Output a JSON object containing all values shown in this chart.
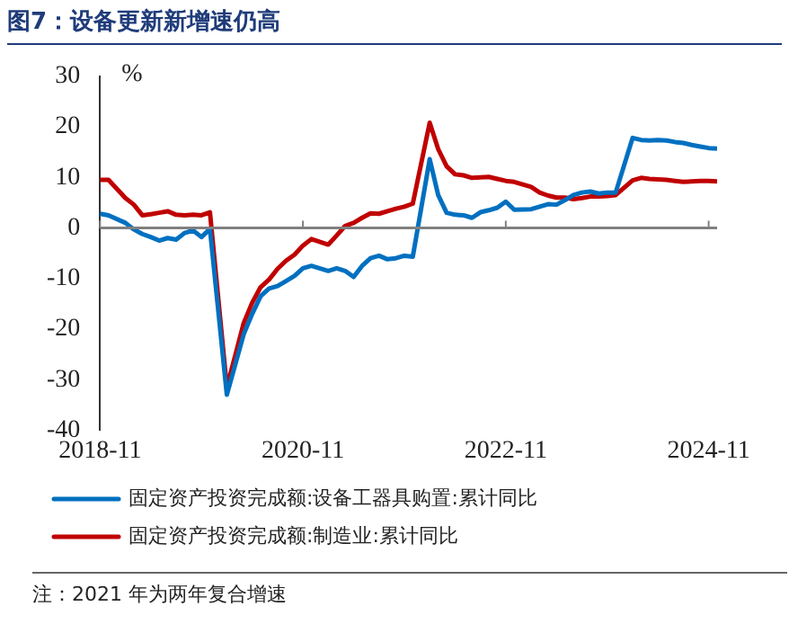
{
  "chart_data": {
    "type": "line",
    "title": "图7：设备更新新增速仍高",
    "ylabel": "%",
    "annotations": [
      "注：2021 年为两年复合增速"
    ],
    "x": [
      "2018-11",
      "2018-12",
      "2019-02",
      "2019-03",
      "2019-04",
      "2019-05",
      "2019-06",
      "2019-07",
      "2019-08",
      "2019-09",
      "2019-10",
      "2019-11",
      "2019-12",
      "2020-02",
      "2020-03",
      "2020-04",
      "2020-05",
      "2020-06",
      "2020-07",
      "2020-08",
      "2020-09",
      "2020-10",
      "2020-11",
      "2020-12",
      "2021-02",
      "2021-03",
      "2021-04",
      "2021-05",
      "2021-06",
      "2021-07",
      "2021-08",
      "2021-09",
      "2021-10",
      "2021-11",
      "2021-12",
      "2022-02",
      "2022-03",
      "2022-04",
      "2022-05",
      "2022-06",
      "2022-07",
      "2022-08",
      "2022-09",
      "2022-10",
      "2022-11",
      "2022-12",
      "2023-02",
      "2023-03",
      "2023-04",
      "2023-05",
      "2023-06",
      "2023-07",
      "2023-08",
      "2023-09",
      "2023-10",
      "2023-11",
      "2023-12",
      "2024-02",
      "2024-03",
      "2024-04",
      "2024-05",
      "2024-06",
      "2024-07",
      "2024-08",
      "2024-09",
      "2024-10",
      "2024-11",
      "2024-12"
    ],
    "series": [
      {
        "name": "固定资产投资完成额:设备工器具购置:累计同比",
        "color": "#0070c0",
        "values": [
          2.8,
          2.5,
          1.0,
          -0.3,
          -1.2,
          -1.8,
          -2.5,
          -2.0,
          -2.3,
          -1.0,
          -0.5,
          -1.8,
          -0.2,
          -33,
          -27,
          -21,
          -17,
          -13.5,
          -12,
          -11.5,
          -10.5,
          -9.5,
          -8,
          -7.5,
          -8.5,
          -8,
          -8.5,
          -9.7,
          -7.5,
          -6,
          -5.5,
          -6.2,
          -6,
          -5.5,
          -5.7,
          13.6,
          6.5,
          3,
          2.6,
          2.5,
          2,
          3.1,
          3.5,
          4,
          5.2,
          3.6,
          3.7,
          4.2,
          4.7,
          4.6,
          5.5,
          6.5,
          7,
          7.2,
          6.8,
          7,
          7,
          17.8,
          17.4,
          17.3,
          17.4,
          17.3,
          17,
          16.8,
          16.4,
          16.1,
          15.8,
          15.7
        ]
      },
      {
        "name": "固定资产投资完成额:制造业:累计同比",
        "color": "#c00000",
        "values": [
          9.5,
          9.5,
          5.9,
          4.6,
          2.5,
          2.7,
          3.0,
          3.3,
          2.6,
          2.5,
          2.6,
          2.5,
          3.1,
          -31.5,
          -25.2,
          -18.8,
          -14.8,
          -11.7,
          -10.2,
          -8.1,
          -6.5,
          -5.3,
          -3.5,
          -2.2,
          -3.3,
          -1.5,
          0.4,
          1.0,
          2.0,
          2.9,
          2.8,
          3.3,
          3.8,
          4.2,
          4.8,
          20.8,
          15.6,
          12.2,
          10.6,
          10.4,
          9.9,
          10.0,
          10.1,
          9.7,
          9.3,
          9.1,
          8.1,
          7.0,
          6.4,
          6.0,
          6.0,
          5.7,
          5.9,
          6.2,
          6.2,
          6.3,
          6.5,
          9.4,
          9.9,
          9.7,
          9.6,
          9.5,
          9.3,
          9.1,
          9.2,
          9.3,
          9.3,
          9.2
        ]
      }
    ],
    "xlim": [
      "2018-11",
      "2024-12"
    ],
    "xticks": [
      "2018-11",
      "2020-11",
      "2022-11",
      "2024-11"
    ],
    "ylim": [
      -40,
      30
    ],
    "yticks": [
      -40,
      -30,
      -20,
      -10,
      0,
      10,
      20,
      30
    ],
    "ref_lines": [
      {
        "axis": "y",
        "value": 0,
        "color": "#808080"
      }
    ],
    "grid": false,
    "legend": "bottom",
    "marker": "none",
    "line_style": "solid"
  }
}
